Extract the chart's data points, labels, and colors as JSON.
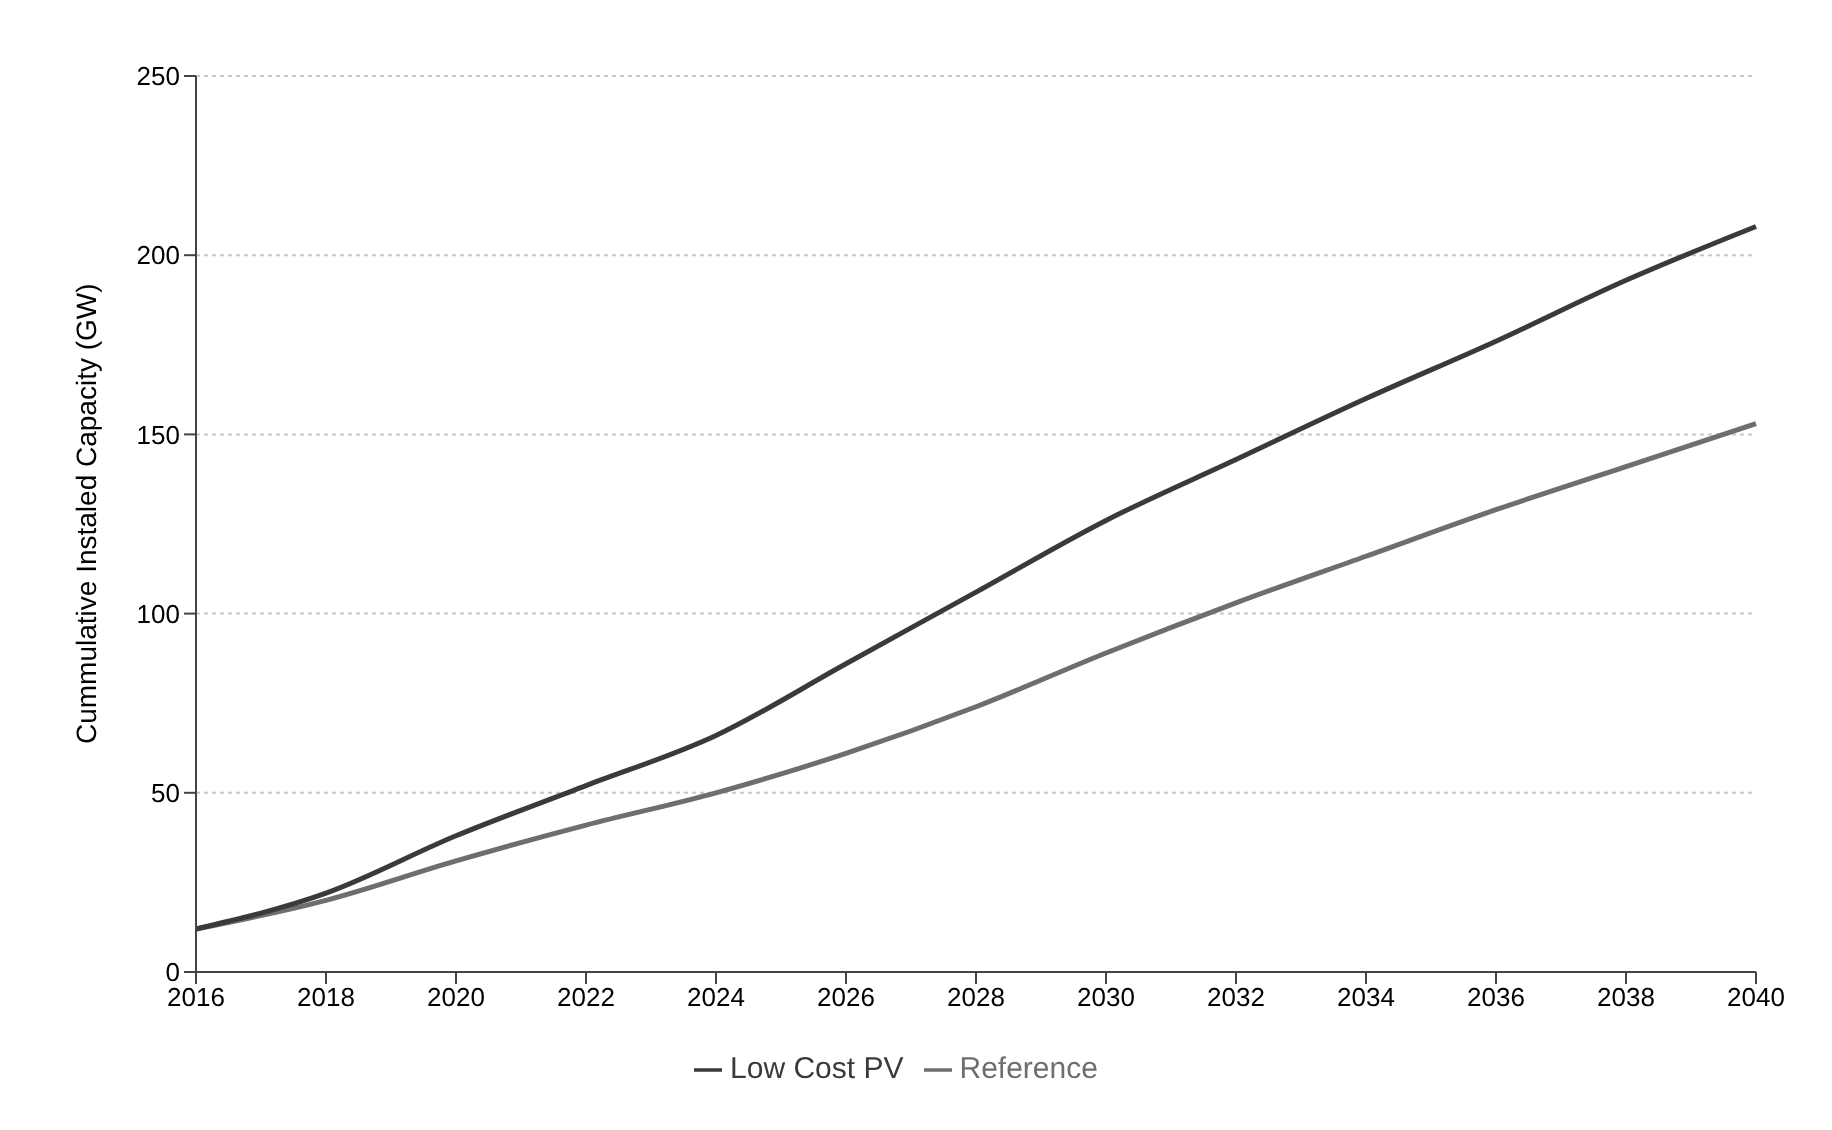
{
  "chart_data": {
    "type": "line",
    "ylabel": "Cummulative Instaled Capacity (GW)",
    "categories": [
      "2016",
      "2018",
      "2020",
      "2022",
      "2024",
      "2026",
      "2028",
      "2030",
      "2032",
      "2034",
      "2036",
      "2038",
      "2040"
    ],
    "series": [
      {
        "name": "Reference",
        "color": "#6e6e6e",
        "values": [
          12,
          20,
          31,
          41,
          50,
          61,
          74,
          89,
          103,
          116,
          129,
          141,
          153
        ]
      },
      {
        "name": "Low Cost PV",
        "color": "#3a3a3a",
        "values": [
          12,
          22,
          38,
          52,
          66,
          86,
          106,
          126,
          143,
          160,
          176,
          193,
          208
        ]
      }
    ],
    "ylim": [
      0,
      250
    ],
    "yticks": [
      0,
      50,
      100,
      150,
      200,
      250
    ],
    "grid": "y",
    "legend": "bottom",
    "marker": "none",
    "line_style": "solid"
  }
}
